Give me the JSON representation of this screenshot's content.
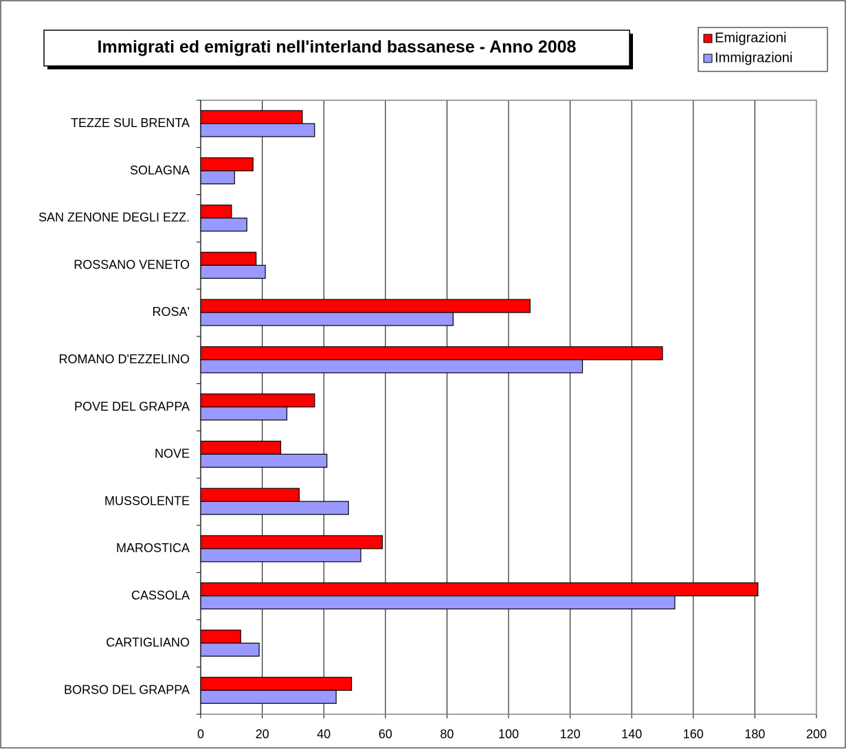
{
  "chart_data": {
    "type": "barh",
    "title": "Immigrati ed emigrati nell'interland bassanese - Anno 2008",
    "categories": [
      "TEZZE SUL BRENTA",
      "SOLAGNA",
      "SAN ZENONE DEGLI EZZ.",
      "ROSSANO VENETO",
      "ROSA'",
      "ROMANO D'EZZELINO",
      "POVE DEL GRAPPA",
      "NOVE",
      "MUSSOLENTE",
      "MAROSTICA",
      "CASSOLA",
      "CARTIGLIANO",
      "BORSO DEL GRAPPA"
    ],
    "series": [
      {
        "name": "Emigrazioni",
        "color": "#ff0000",
        "values": [
          33,
          17,
          10,
          18,
          107,
          150,
          37,
          26,
          32,
          59,
          181,
          13,
          49
        ]
      },
      {
        "name": "Immigrazioni",
        "color": "#9999ff",
        "values": [
          37,
          11,
          15,
          21,
          82,
          124,
          28,
          41,
          48,
          52,
          154,
          19,
          44
        ]
      }
    ],
    "xlim": [
      0,
      200
    ],
    "xticks": [
      0,
      20,
      40,
      60,
      80,
      100,
      120,
      140,
      160,
      180,
      200
    ],
    "grid": true,
    "legend": "top-right"
  }
}
